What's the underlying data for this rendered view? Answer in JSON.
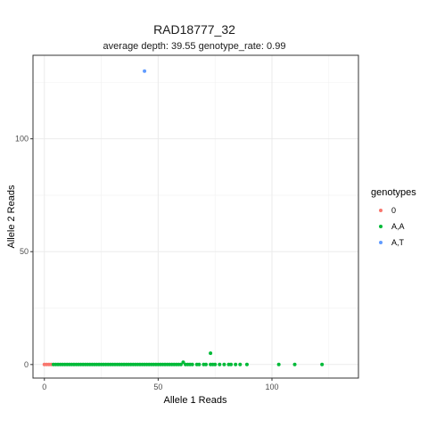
{
  "chart_data": {
    "type": "scatter",
    "title": "RAD18777_32",
    "subtitle": "average depth:  39.55  genotype_rate:  0.99",
    "xlabel": "Allele 1 Reads",
    "ylabel": "Allele 2 Reads",
    "xlim": [
      -5,
      138
    ],
    "ylim": [
      -6,
      137
    ],
    "x_ticks": [
      0,
      50,
      100
    ],
    "y_ticks": [
      0,
      50,
      100
    ],
    "grid": true,
    "legend": {
      "title": "genotypes",
      "position": "right"
    },
    "series": [
      {
        "name": "0",
        "color": "#F8766D",
        "points": [
          [
            0,
            0
          ],
          [
            1,
            0
          ],
          [
            2,
            0
          ],
          [
            3,
            0
          ]
        ]
      },
      {
        "name": "A,A",
        "color": "#00BA38",
        "points": [
          [
            4,
            0
          ],
          [
            5,
            0
          ],
          [
            6,
            0
          ],
          [
            7,
            0
          ],
          [
            8,
            0
          ],
          [
            9,
            0
          ],
          [
            10,
            0
          ],
          [
            11,
            0
          ],
          [
            12,
            0
          ],
          [
            13,
            0
          ],
          [
            14,
            0
          ],
          [
            15,
            0
          ],
          [
            16,
            0
          ],
          [
            17,
            0
          ],
          [
            18,
            0
          ],
          [
            19,
            0
          ],
          [
            20,
            0
          ],
          [
            21,
            0
          ],
          [
            22,
            0
          ],
          [
            23,
            0
          ],
          [
            24,
            0
          ],
          [
            25,
            0
          ],
          [
            26,
            0
          ],
          [
            27,
            0
          ],
          [
            28,
            0
          ],
          [
            29,
            0
          ],
          [
            30,
            0
          ],
          [
            31,
            0
          ],
          [
            32,
            0
          ],
          [
            33,
            0
          ],
          [
            34,
            0
          ],
          [
            35,
            0
          ],
          [
            36,
            0
          ],
          [
            37,
            0
          ],
          [
            38,
            0
          ],
          [
            39,
            0
          ],
          [
            40,
            0
          ],
          [
            41,
            0
          ],
          [
            42,
            0
          ],
          [
            43,
            0
          ],
          [
            44,
            0
          ],
          [
            45,
            0
          ],
          [
            46,
            0
          ],
          [
            47,
            0
          ],
          [
            48,
            0
          ],
          [
            49,
            0
          ],
          [
            50,
            0
          ],
          [
            51,
            0
          ],
          [
            52,
            0
          ],
          [
            53,
            0
          ],
          [
            54,
            0
          ],
          [
            55,
            0
          ],
          [
            56,
            0
          ],
          [
            57,
            0
          ],
          [
            58,
            0
          ],
          [
            59,
            0
          ],
          [
            60,
            0
          ],
          [
            61,
            1
          ],
          [
            62,
            0
          ],
          [
            63,
            0
          ],
          [
            64,
            0
          ],
          [
            65,
            0
          ],
          [
            67,
            0
          ],
          [
            68,
            0
          ],
          [
            70,
            0
          ],
          [
            71,
            0
          ],
          [
            73,
            5
          ],
          [
            73,
            0
          ],
          [
            74,
            0
          ],
          [
            75,
            0
          ],
          [
            77,
            0
          ],
          [
            79,
            0
          ],
          [
            81,
            0
          ],
          [
            82,
            0
          ],
          [
            84,
            0
          ],
          [
            86,
            0
          ],
          [
            89,
            0
          ],
          [
            103,
            0
          ],
          [
            110,
            0
          ],
          [
            122,
            0
          ]
        ]
      },
      {
        "name": "A,T",
        "color": "#619CFF",
        "points": [
          [
            44,
            130
          ]
        ]
      }
    ]
  }
}
